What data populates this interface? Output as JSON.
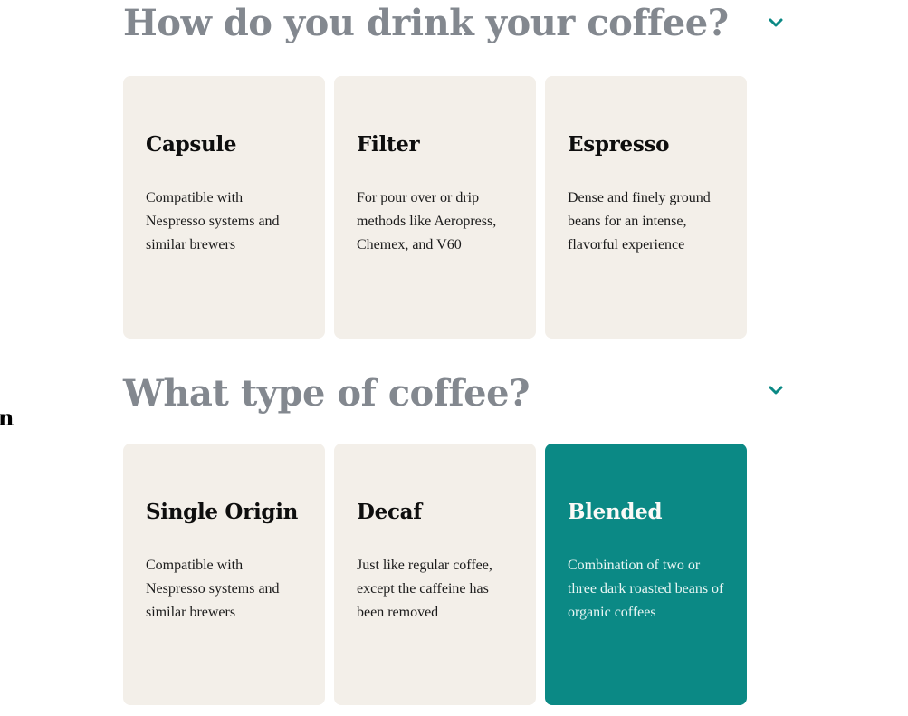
{
  "stray_text": "n",
  "colors": {
    "title_gray": "#83888f",
    "card_background": "#f3efe9",
    "selected_background": "#0b8985",
    "chevron_teal": "#0b8985"
  },
  "sections": [
    {
      "title": "How do you drink your coffee?",
      "toggle_icon": "chevron-down-icon",
      "cards": [
        {
          "title": "Capsule",
          "description": "Compatible with Nespresso systems and similar brewers",
          "selected": false
        },
        {
          "title": "Filter",
          "description": "For pour over or drip methods like Aeropress, Chemex, and V60",
          "selected": false
        },
        {
          "title": "Espresso",
          "description": "Dense and finely ground beans for an intense, flavorful experience",
          "selected": false
        }
      ]
    },
    {
      "title": "What type of coffee?",
      "toggle_icon": "chevron-down-icon",
      "cards": [
        {
          "title": "Single Origin",
          "description": "Compatible with Nespresso systems and similar brewers",
          "selected": false
        },
        {
          "title": "Decaf",
          "description": "Just like regular coffee, except the caffeine has been removed",
          "selected": false
        },
        {
          "title": "Blended",
          "description": "Combination of two or three dark roasted beans of organic coffees",
          "selected": true
        }
      ]
    }
  ]
}
